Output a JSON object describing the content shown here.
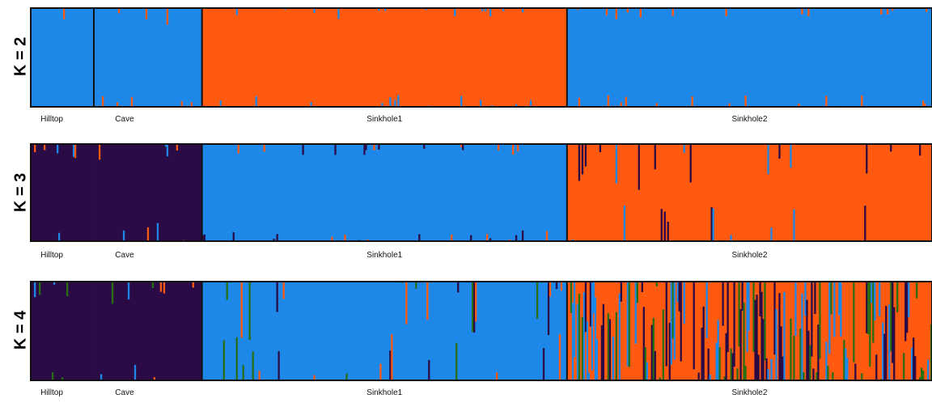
{
  "chart_data": {
    "type": "bar",
    "subtype": "stacked-admixture-structure-plot",
    "colors": {
      "blue": "#1e88e8",
      "orange": "#ff5a10",
      "purple": "#2a0b45",
      "green": "#2a6e12",
      "grey": "#8c8c8c",
      "frame": "#111111"
    },
    "populations": [
      {
        "name": "Hilltop",
        "share": 0.07
      },
      {
        "name": "Cave",
        "share": 0.12
      },
      {
        "name": "Sinkhole1",
        "share": 0.405
      },
      {
        "name": "Sinkhole2",
        "share": 0.405
      }
    ],
    "panels": [
      {
        "label": "K = 2",
        "clusters": [
          "blue",
          "orange"
        ],
        "population_major_cluster": [
          "blue",
          "blue",
          "orange",
          "blue"
        ],
        "minor_cluster_mean_fraction": [
          0.04,
          0.03,
          0.02,
          0.02
        ],
        "separators_after": [
          "Hilltop",
          "Cave",
          "Sinkhole1"
        ]
      },
      {
        "label": "K = 3",
        "clusters": [
          "purple",
          "blue",
          "orange"
        ],
        "population_major_cluster": [
          "purple",
          "purple",
          "blue",
          "orange"
        ],
        "minor_cluster_mean_fraction": [
          0.03,
          0.04,
          0.02,
          0.08
        ],
        "separators_after": [
          "Cave",
          "Sinkhole1"
        ]
      },
      {
        "label": "K = 4",
        "clusters": [
          "purple",
          "blue",
          "orange",
          "green"
        ],
        "population_major_cluster": [
          "purple",
          "purple",
          "blue",
          "orange"
        ],
        "minor_cluster_mean_fraction": [
          0.03,
          0.04,
          0.1,
          0.35
        ],
        "separators_after": [
          "Cave",
          "Sinkhole1"
        ]
      }
    ]
  }
}
